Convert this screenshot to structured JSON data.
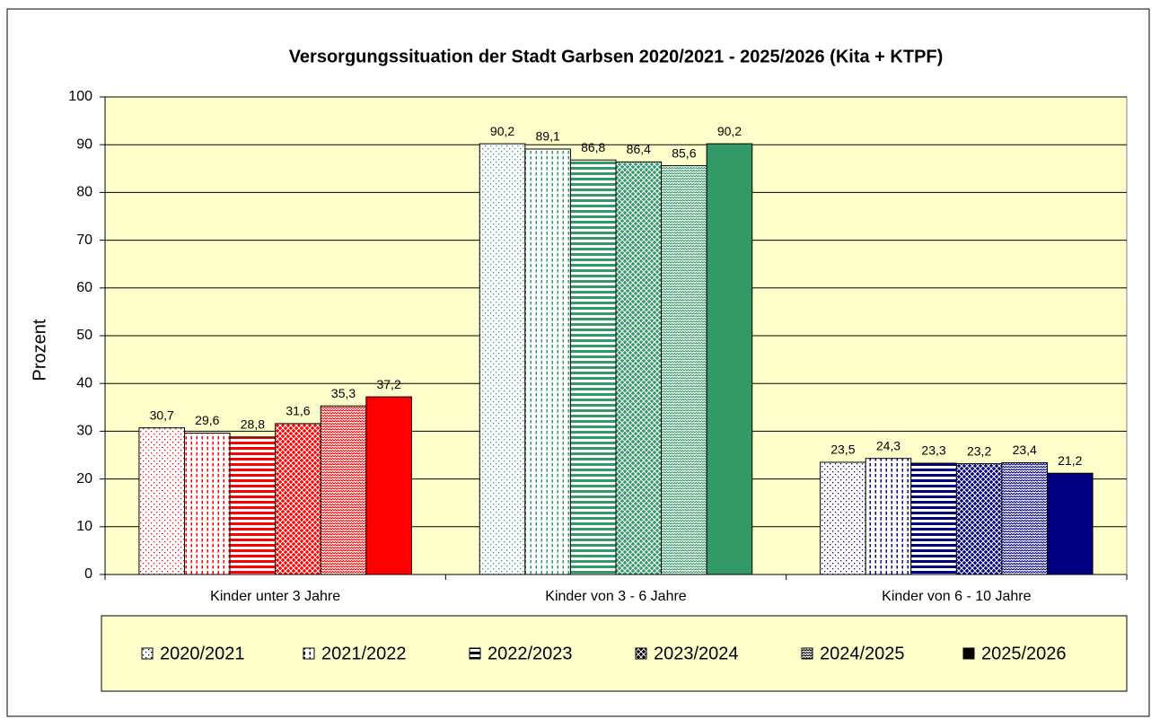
{
  "chart_data": {
    "type": "bar",
    "title": "Versorgungssituation der Stadt Garbsen 2020/2021 - 2025/2026 (Kita + KTPF)",
    "y_label": "Prozent",
    "categories": [
      "Kinder unter 3 Jahre",
      "Kinder von 3 - 6 Jahre",
      "Kinder von 6 - 10 Jahre"
    ],
    "category_colors": [
      "#ff0000",
      "#339966",
      "#000080"
    ],
    "series": [
      {
        "name": "2020/2021",
        "pattern": "dots",
        "values": [
          30.7,
          90.2,
          23.5
        ],
        "value_labels": [
          "30,7",
          "90,2",
          "23,5"
        ]
      },
      {
        "name": "2021/2022",
        "pattern": "vdash",
        "values": [
          29.6,
          89.1,
          24.3
        ],
        "value_labels": [
          "29,6",
          "89,1",
          "24,3"
        ]
      },
      {
        "name": "2022/2023",
        "pattern": "hstripe",
        "values": [
          28.8,
          86.8,
          23.3
        ],
        "value_labels": [
          "28,8",
          "86,8",
          "23,3"
        ]
      },
      {
        "name": "2023/2024",
        "pattern": "check",
        "values": [
          31.6,
          86.4,
          23.2
        ],
        "value_labels": [
          "31,6",
          "86,4",
          "23,2"
        ]
      },
      {
        "name": "2024/2025",
        "pattern": "wave",
        "values": [
          35.3,
          85.6,
          23.4
        ],
        "value_labels": [
          "35,3",
          "85,6",
          "23,4"
        ]
      },
      {
        "name": "2025/2026",
        "pattern": "solid",
        "values": [
          37.2,
          90.2,
          21.2
        ],
        "value_labels": [
          "37,2",
          "90,2",
          "21,2"
        ]
      }
    ],
    "ylim": [
      0,
      100
    ],
    "yticks": [
      0,
      10,
      20,
      30,
      40,
      50,
      60,
      70,
      80,
      90,
      100
    ],
    "grid": true,
    "legend": "bottom",
    "plot_background": "#ffffcc"
  }
}
